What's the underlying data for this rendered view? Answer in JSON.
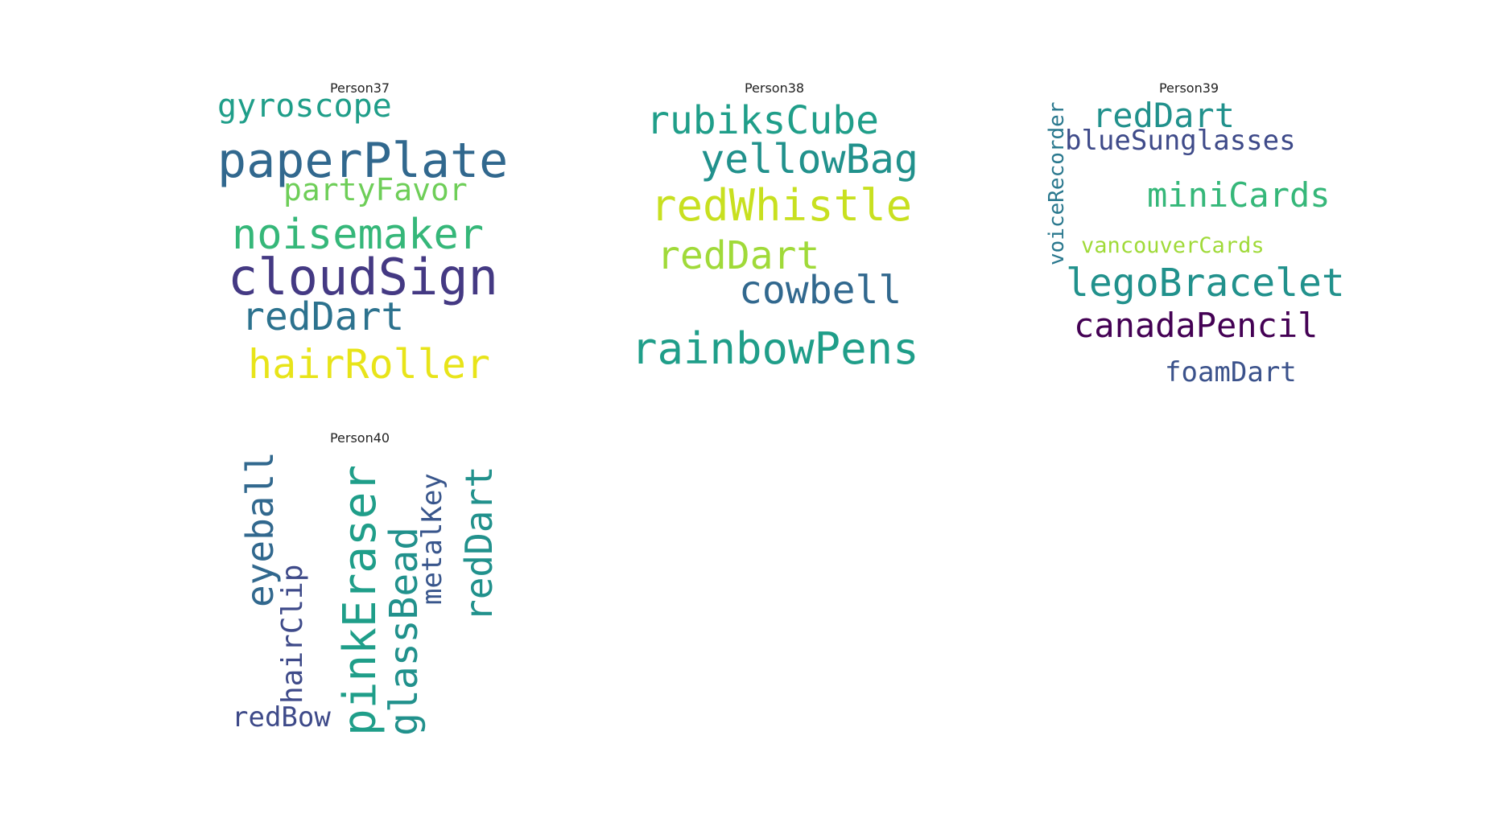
{
  "panels": [
    {
      "title": "Person37",
      "words": [
        {
          "text": "gyroscope",
          "color": "#1f9e89"
        },
        {
          "text": "paperPlate",
          "color": "#31688e"
        },
        {
          "text": "partyFavor",
          "color": "#6ece58"
        },
        {
          "text": "noisemaker",
          "color": "#35b779"
        },
        {
          "text": "cloudSign",
          "color": "#443983"
        },
        {
          "text": "redDart",
          "color": "#2c728e"
        },
        {
          "text": "hairRoller",
          "color": "#e8e419"
        }
      ]
    },
    {
      "title": "Person38",
      "words": [
        {
          "text": "rubiksCube",
          "color": "#1f9e89"
        },
        {
          "text": "yellowBag",
          "color": "#21918c"
        },
        {
          "text": "redWhistle",
          "color": "#c8e020"
        },
        {
          "text": "redDart",
          "color": "#a0da39"
        },
        {
          "text": "cowbell",
          "color": "#31688e"
        },
        {
          "text": "rainbowPens",
          "color": "#1f9e89"
        }
      ]
    },
    {
      "title": "Person39",
      "words": [
        {
          "text": "redDart",
          "color": "#21918c"
        },
        {
          "text": "blueSunglasses",
          "color": "#3e4a89"
        },
        {
          "text": "voiceRecorder",
          "color": "#2a788e"
        },
        {
          "text": "miniCards",
          "color": "#35b779"
        },
        {
          "text": "vancouverCards",
          "color": "#a0da39"
        },
        {
          "text": "legoBracelet",
          "color": "#21918c"
        },
        {
          "text": "canadaPencil",
          "color": "#440154"
        },
        {
          "text": "foamDart",
          "color": "#3b528b"
        }
      ]
    },
    {
      "title": "Person40",
      "words": [
        {
          "text": "eyeball",
          "color": "#31688e"
        },
        {
          "text": "hairClip",
          "color": "#3e4a89"
        },
        {
          "text": "pinkEraser",
          "color": "#1f9e89"
        },
        {
          "text": "glassBead",
          "color": "#21918c"
        },
        {
          "text": "metalKey",
          "color": "#39568c"
        },
        {
          "text": "redDart",
          "color": "#21918c"
        },
        {
          "text": "redBow",
          "color": "#3e4a89"
        }
      ]
    }
  ]
}
